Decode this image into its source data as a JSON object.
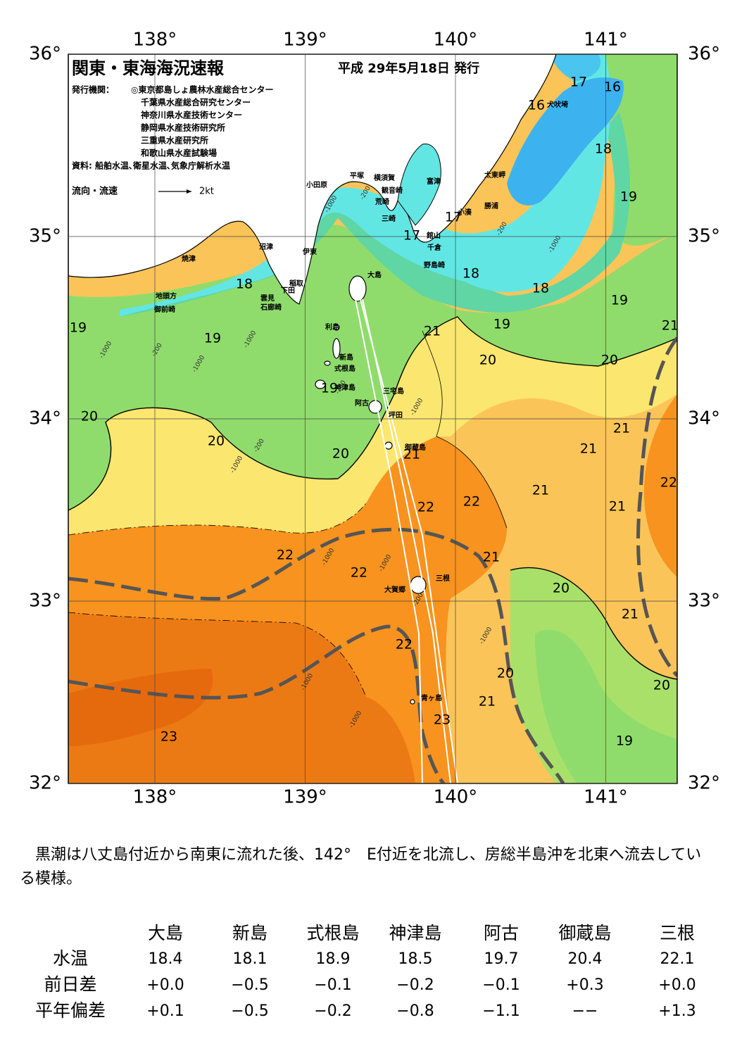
{
  "header": {
    "title": "関東・東海海況速報",
    "date": "平成 29年5月18日 発行",
    "issuer_label": "発行機関：",
    "issuers": [
      "◎東京都島しょ農林水産総合センター",
      "千葉県水産総合研究センター",
      "神奈川県水産技術センター",
      "静岡県水産技術研究所",
      "三重県水産研究所",
      "和歌山県水産試験場"
    ],
    "source": "資料: 船舶水温､衛星水温､気象庁解析水温",
    "legend_label": "流向・流速",
    "legend_scale": "2kt"
  },
  "map": {
    "lon_ticks": [
      {
        "value": 138,
        "label": "138°"
      },
      {
        "value": 139,
        "label": "139°"
      },
      {
        "value": 140,
        "label": "140°"
      },
      {
        "value": 141,
        "label": "141°"
      }
    ],
    "lat_ticks": [
      {
        "value": 36,
        "label": "36°"
      },
      {
        "value": 35,
        "label": "35°"
      },
      {
        "value": 34,
        "label": "34°"
      },
      {
        "value": 33,
        "label": "33°"
      },
      {
        "value": 32,
        "label": "32°"
      }
    ],
    "isotherm_labels": [
      "17",
      "16",
      "16",
      "18",
      "19",
      "17",
      "17",
      "18",
      "18",
      "19",
      "18",
      "19",
      "19",
      "19",
      "21",
      "20",
      "20",
      "21",
      "19",
      "20",
      "20",
      "20",
      "21",
      "21",
      "21",
      "22",
      "21",
      "21",
      "22",
      "22",
      "22",
      "22",
      "21",
      "20",
      "21",
      "22",
      "20",
      "21",
      "20",
      "23",
      "19",
      "23"
    ],
    "depth_labels": [
      "-200",
      "-1000",
      "-200",
      "-1000",
      "-1000",
      "-200",
      "-1000",
      "-1000",
      "-200",
      "-200",
      "-1000",
      "-1000",
      "-1000",
      "-1000",
      "-200",
      "-1000",
      "-1000",
      "-1000"
    ],
    "place_names": [
      "小田原",
      "平塚",
      "横須賀",
      "観音崎",
      "富津",
      "荒崎",
      "三崎",
      "館山",
      "千倉",
      "野島崎",
      "太東岬",
      "勝浦",
      "犬吠埼",
      "小湊",
      "沼津",
      "伊東",
      "焼津",
      "稲取",
      "下田",
      "雲見",
      "石廊崎",
      "地頭方",
      "御前崎",
      "大島",
      "利島",
      "新島",
      "式根島",
      "神津島",
      "阿古",
      "三宅島",
      "坪田",
      "御蔵島",
      "三根",
      "大賀郷",
      "青ヶ島"
    ]
  },
  "summary": "　黒潮は八丈島付近から南東に流れた後、142°　E付近を北流し、房総半島沖を北東へ流去している模様。",
  "table": {
    "columns": [
      "大島",
      "新島",
      "式根島",
      "神津島",
      "阿古",
      "御蔵島",
      "三根"
    ],
    "rows": [
      {
        "label": "水温",
        "cells": [
          "18.4",
          "18.1",
          "18.9",
          "18.5",
          "19.7",
          "20.4",
          "22.1"
        ]
      },
      {
        "label": "前日差",
        "cells": [
          "+0.0",
          "−0.5",
          "−0.1",
          "−0.2",
          "−0.1",
          "+0.3",
          "+0.0"
        ]
      },
      {
        "label": "平年偏差",
        "cells": [
          "+0.1",
          "−0.5",
          "−0.2",
          "−0.8",
          "−1.1",
          "−−",
          "+1.3"
        ]
      }
    ]
  }
}
